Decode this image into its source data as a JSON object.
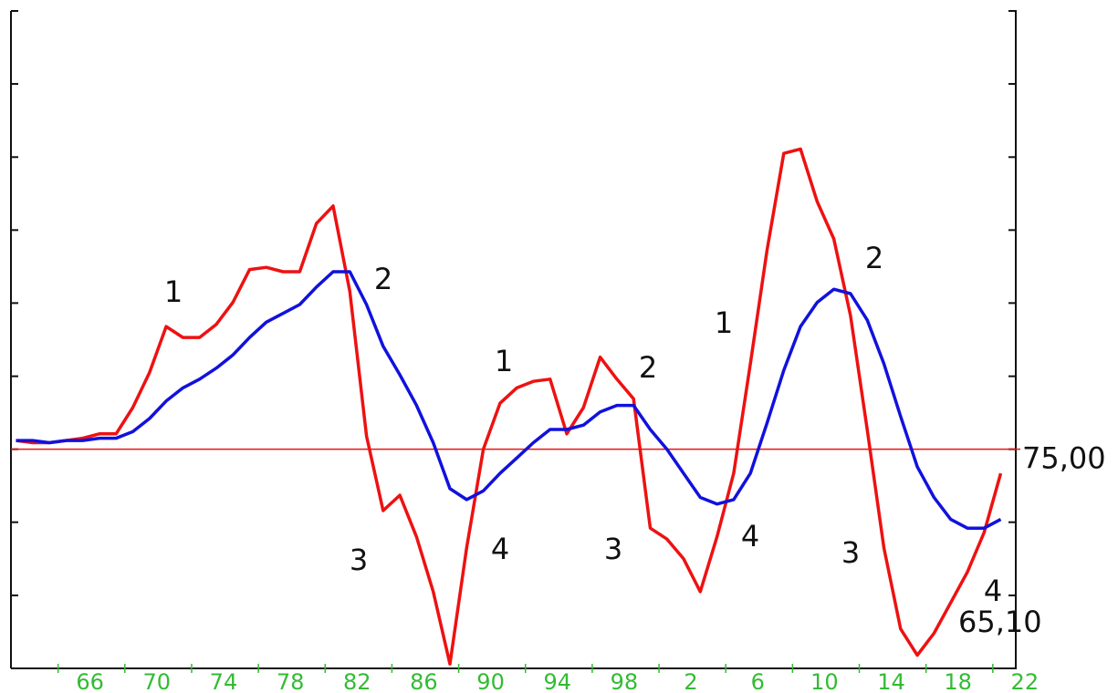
{
  "chart_data": {
    "type": "line",
    "xlim": [
      1961.7,
      2021.9
    ],
    "xticks": [
      {
        "value": 1966,
        "label": "66"
      },
      {
        "value": 1970,
        "label": "70"
      },
      {
        "value": 1974,
        "label": "74"
      },
      {
        "value": 1978,
        "label": "78"
      },
      {
        "value": 1982,
        "label": "82"
      },
      {
        "value": 1986,
        "label": "86"
      },
      {
        "value": 1990,
        "label": "90"
      },
      {
        "value": 1994,
        "label": "94"
      },
      {
        "value": 1998,
        "label": "98"
      },
      {
        "value": 2002,
        "label": "2"
      },
      {
        "value": 2006,
        "label": "6"
      },
      {
        "value": 2010,
        "label": "10"
      },
      {
        "value": 2014,
        "label": "14"
      },
      {
        "value": 2018,
        "label": "18"
      },
      {
        "value": 2022,
        "label": "22"
      }
    ],
    "ylim": [
      65,
      95
    ],
    "yticks": [
      65,
      68.33,
      71.67,
      75,
      78.33,
      81.67,
      85,
      88.33,
      91.67,
      95
    ],
    "x": [
      1962,
      1963,
      1964,
      1965,
      1966,
      1967,
      1968,
      1969,
      1970,
      1971,
      1972,
      1973,
      1974,
      1975,
      1976,
      1977,
      1978,
      1979,
      1980,
      1981,
      1982,
      1983,
      1984,
      1985,
      1986,
      1987,
      1988,
      1989,
      1990,
      1991,
      1992,
      1993,
      1994,
      1995,
      1996,
      1997,
      1998,
      1999,
      2000,
      2001,
      2002,
      2003,
      2004,
      2005,
      2006,
      2007,
      2008,
      2009,
      2010,
      2011,
      2012,
      2013,
      2014,
      2015,
      2016,
      2017,
      2018,
      2019,
      2020,
      2021
    ],
    "series": [
      {
        "color": "#ee1111",
        "values": [
          75.4,
          75.3,
          75.3,
          75.4,
          75.5,
          75.7,
          75.7,
          76.9,
          78.5,
          80.6,
          80.1,
          80.1,
          80.7,
          81.7,
          83.2,
          83.3,
          83.1,
          83.1,
          85.3,
          86.1,
          82.2,
          75.6,
          72.2,
          72.9,
          71.0,
          68.5,
          65.2,
          70.5,
          75.0,
          77.1,
          77.8,
          78.1,
          78.2,
          75.7,
          76.9,
          79.2,
          78.2,
          77.3,
          71.4,
          70.9,
          70.0,
          68.5,
          71.0,
          73.9,
          78.9,
          84.1,
          88.5,
          88.7,
          86.3,
          84.6,
          81.1,
          75.9,
          70.5,
          66.8,
          65.6,
          66.6,
          68.0,
          69.4,
          71.2,
          73.9
        ]
      },
      {
        "color": "#1111dd",
        "values": [
          75.4,
          75.4,
          75.3,
          75.4,
          75.4,
          75.5,
          75.5,
          75.8,
          76.4,
          77.2,
          77.8,
          78.2,
          78.7,
          79.3,
          80.1,
          80.8,
          81.2,
          81.6,
          82.4,
          83.1,
          83.1,
          81.6,
          79.7,
          78.4,
          77.0,
          75.3,
          73.2,
          72.7,
          73.1,
          73.9,
          74.6,
          75.3,
          75.9,
          75.9,
          76.1,
          76.7,
          77.0,
          77.0,
          75.9,
          75.0,
          73.9,
          72.8,
          72.5,
          72.7,
          73.9,
          76.2,
          78.6,
          80.6,
          81.7,
          82.3,
          82.1,
          80.9,
          78.9,
          76.5,
          74.2,
          72.8,
          71.8,
          71.4,
          71.4,
          71.8
        ]
      }
    ],
    "reference": {
      "value": 75,
      "label": "75,00",
      "color": "#ee1111"
    },
    "min_label": "65,10",
    "annotations": [
      "1",
      "2",
      "3",
      "4",
      "1",
      "2",
      "3",
      "4",
      "1",
      "2",
      "3",
      "4"
    ]
  }
}
